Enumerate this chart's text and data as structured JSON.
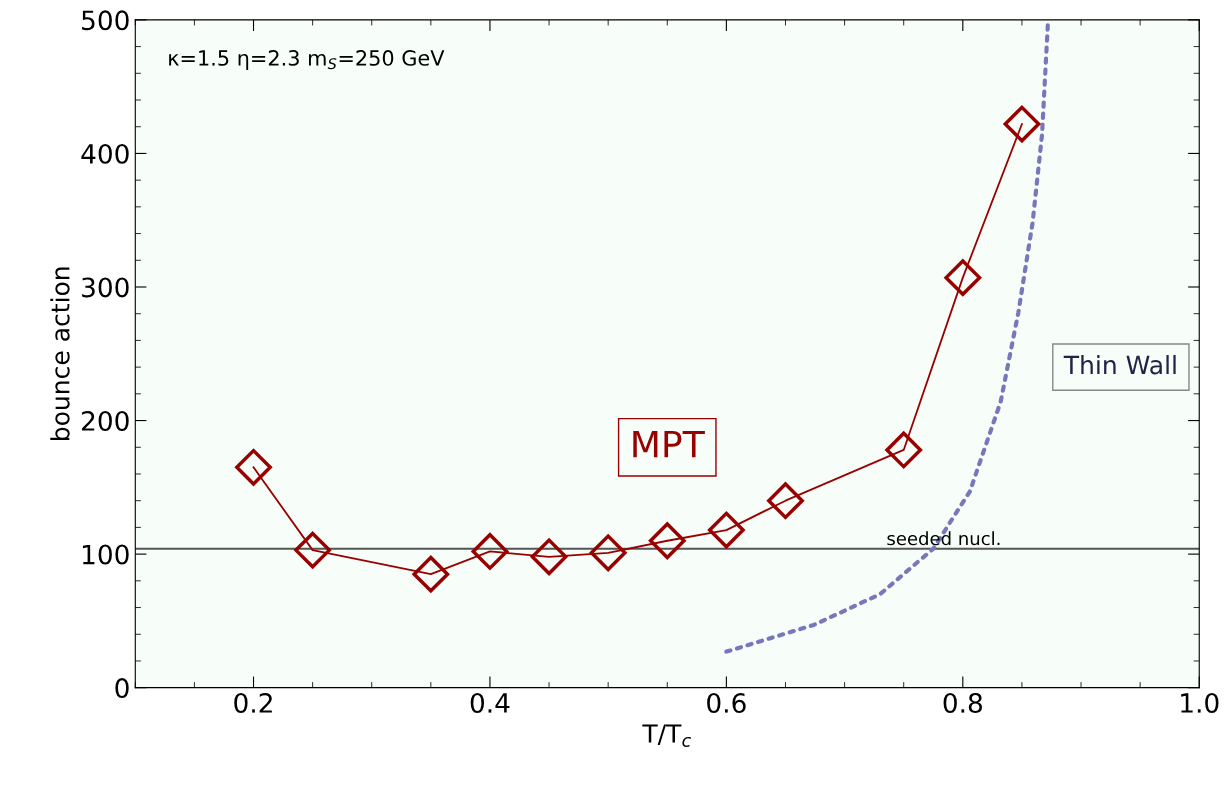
{
  "chart_data": {
    "type": "line",
    "xlabel": "T/T$_{c}$",
    "ylabel": "bounce action",
    "annotations": [
      "κ=1.5 η=2.3 m$_{S}$=250 GeV"
    ],
    "xlim": [
      0.1,
      1.0
    ],
    "xticks": [
      {
        "value": 0.2,
        "label": "0.2"
      },
      {
        "value": 0.4,
        "label": "0.4"
      },
      {
        "value": 0.6,
        "label": "0.6"
      },
      {
        "value": 0.8,
        "label": "0.8"
      },
      {
        "value": 1.0,
        "label": "1.0"
      }
    ],
    "ylim": [
      0,
      500
    ],
    "yticks": [
      0,
      100,
      200,
      300,
      400,
      500
    ],
    "grid": false,
    "legend": false,
    "series": [
      {
        "name": "MPT",
        "color": "#990000",
        "marker": "diamond",
        "line_style": "solid",
        "x": [
          0.2,
          0.25,
          0.35,
          0.4,
          0.45,
          0.5,
          0.55,
          0.6,
          0.65,
          0.75,
          0.8,
          0.85
        ],
        "values": [
          165,
          103,
          85,
          102,
          98,
          101,
          110,
          118,
          140,
          178,
          307,
          422
        ]
      },
      {
        "name": "Thin Wall",
        "color": "#7777bb",
        "marker": "none",
        "line_style": "dotted",
        "x": [
          0.6,
          0.674,
          0.73,
          0.775,
          0.806,
          0.832,
          0.847,
          0.859,
          0.867,
          0.872
        ],
        "values": [
          27,
          47,
          70,
          104,
          147,
          214,
          281,
          348,
          414,
          498
        ]
      }
    ],
    "ref_lines": [
      {
        "axis": "y",
        "value": 104,
        "label": "seeded nucl.",
        "color": "#555555",
        "line_style": "solid"
      }
    ]
  }
}
